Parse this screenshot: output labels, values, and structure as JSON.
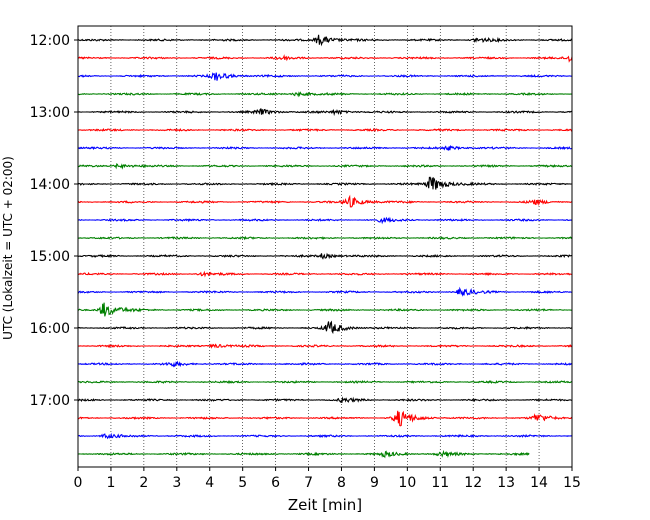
{
  "chart_data": {
    "type": "line",
    "title": "",
    "xlabel": "Zeit  [min]",
    "ylabel": "UTC (Lokalzeit = UTC + 02:00)",
    "xlim": [
      0,
      15
    ],
    "x_ticks": [
      "0",
      "1",
      "2",
      "3",
      "4",
      "5",
      "6",
      "7",
      "8",
      "9",
      "10",
      "11",
      "12",
      "13",
      "14",
      "15"
    ],
    "y_tick_labels": [
      "12:00",
      "13:00",
      "14:00",
      "15:00",
      "16:00",
      "17:00"
    ],
    "grid": "vertical dotted",
    "trace_colors": [
      "#000000",
      "#ff0000",
      "#0000ff",
      "#008000"
    ],
    "trace_interval_min": 15,
    "traces": [
      {
        "start": "12:00",
        "duration_min": 15,
        "events": [
          {
            "t": 7.3,
            "amp": 0.8
          },
          {
            "t": 12.1,
            "amp": 0.35
          }
        ]
      },
      {
        "start": "12:15",
        "duration_min": 15,
        "events": [
          {
            "t": 14.9,
            "amp": 0.5
          },
          {
            "t": 6.1,
            "amp": 0.3
          }
        ]
      },
      {
        "start": "12:30",
        "duration_min": 15,
        "events": [
          {
            "t": 4.15,
            "amp": 0.7
          }
        ]
      },
      {
        "start": "12:45",
        "duration_min": 15,
        "events": [
          {
            "t": 6.6,
            "amp": 0.3
          }
        ]
      },
      {
        "start": "13:00",
        "duration_min": 15,
        "events": [
          {
            "t": 5.5,
            "amp": 0.45
          },
          {
            "t": 7.8,
            "amp": 0.3
          }
        ]
      },
      {
        "start": "13:15",
        "duration_min": 15,
        "events": []
      },
      {
        "start": "13:30",
        "duration_min": 15,
        "events": [
          {
            "t": 11.2,
            "amp": 0.3
          }
        ]
      },
      {
        "start": "13:45",
        "duration_min": 15,
        "events": [
          {
            "t": 1.2,
            "amp": 0.35
          }
        ]
      },
      {
        "start": "14:00",
        "duration_min": 15,
        "events": [
          {
            "t": 10.7,
            "amp": 1.3
          }
        ]
      },
      {
        "start": "14:15",
        "duration_min": 15,
        "events": [
          {
            "t": 8.2,
            "amp": 0.9
          },
          {
            "t": 13.8,
            "amp": 0.35
          }
        ]
      },
      {
        "start": "14:30",
        "duration_min": 15,
        "events": [
          {
            "t": 9.2,
            "amp": 0.3
          }
        ]
      },
      {
        "start": "14:45",
        "duration_min": 15,
        "events": []
      },
      {
        "start": "15:00",
        "duration_min": 15,
        "events": [
          {
            "t": 7.4,
            "amp": 0.35
          }
        ]
      },
      {
        "start": "15:15",
        "duration_min": 15,
        "events": [
          {
            "t": 3.7,
            "amp": 0.25
          }
        ]
      },
      {
        "start": "15:30",
        "duration_min": 15,
        "events": [
          {
            "t": 11.6,
            "amp": 0.6
          }
        ]
      },
      {
        "start": "15:45",
        "duration_min": 15,
        "events": [
          {
            "t": 0.75,
            "amp": 1.2
          }
        ]
      },
      {
        "start": "16:00",
        "duration_min": 15,
        "events": [
          {
            "t": 7.6,
            "amp": 1.0
          }
        ]
      },
      {
        "start": "16:15",
        "duration_min": 15,
        "events": [
          {
            "t": 4.1,
            "amp": 0.3
          }
        ]
      },
      {
        "start": "16:30",
        "duration_min": 15,
        "events": [
          {
            "t": 2.8,
            "amp": 0.3
          }
        ]
      },
      {
        "start": "16:45",
        "duration_min": 15,
        "events": []
      },
      {
        "start": "17:00",
        "duration_min": 15,
        "events": [
          {
            "t": 8.0,
            "amp": 0.3
          }
        ]
      },
      {
        "start": "17:15",
        "duration_min": 15,
        "events": [
          {
            "t": 9.7,
            "amp": 1.3
          },
          {
            "t": 13.9,
            "amp": 0.6
          }
        ]
      },
      {
        "start": "17:30",
        "duration_min": 15,
        "events": [
          {
            "t": 0.8,
            "amp": 0.35
          }
        ]
      },
      {
        "start": "17:45",
        "duration_min": 13.7,
        "events": [
          {
            "t": 9.3,
            "amp": 0.35
          },
          {
            "t": 11.0,
            "amp": 0.3
          }
        ]
      }
    ]
  }
}
